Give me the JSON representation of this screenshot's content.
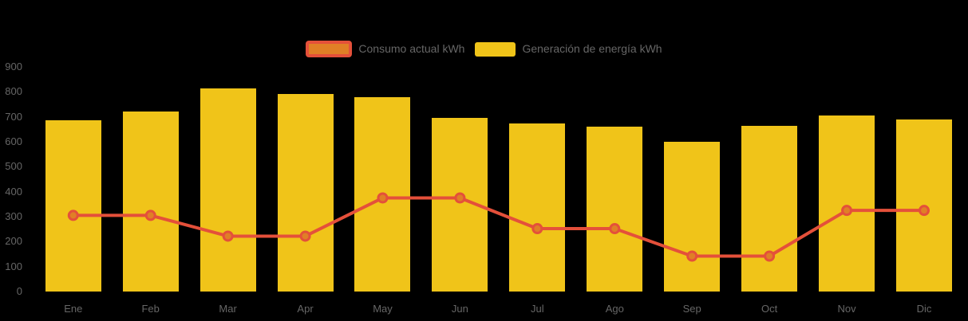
{
  "colors": {
    "background": "#000000",
    "axis_label": "#666666",
    "legend_text": "#666666",
    "bar_yellow": "#f0c419",
    "line_red": "#e4503a",
    "marker_orange": "#e07f26"
  },
  "legend": {
    "items": [
      {
        "label": "Consumo actual kWh",
        "swatch_fill": "#e07f26",
        "swatch_border": "#e4503a",
        "series_type": "line"
      },
      {
        "label": "Generación de energía kWh",
        "swatch_fill": "#f0c419",
        "swatch_border": "#f0c419",
        "series_type": "bar"
      }
    ]
  },
  "chart_data": {
    "type": "bar",
    "title": "",
    "xlabel": "",
    "ylabel": "",
    "categories": [
      "Ene",
      "Feb",
      "Mar",
      "Apr",
      "May",
      "Jun",
      "Jul",
      "Ago",
      "Sep",
      "Oct",
      "Nov",
      "Dic"
    ],
    "series": [
      {
        "name": "Generación de energía kWh",
        "type": "bar",
        "color": "#f0c419",
        "values": [
          685,
          720,
          815,
          790,
          780,
          695,
          675,
          660,
          600,
          665,
          705,
          690
        ]
      },
      {
        "name": "Consumo actual kWh",
        "type": "line",
        "color": "#e4503a",
        "marker_fill": "#e07f26",
        "values": [
          305,
          305,
          222,
          222,
          375,
          375,
          252,
          252,
          142,
          142,
          325,
          325
        ]
      }
    ],
    "ylim": [
      0,
      900
    ],
    "yticks": [
      0,
      100,
      200,
      300,
      400,
      500,
      600,
      700,
      800,
      900
    ],
    "grid": false,
    "legend_position": "top-center"
  }
}
